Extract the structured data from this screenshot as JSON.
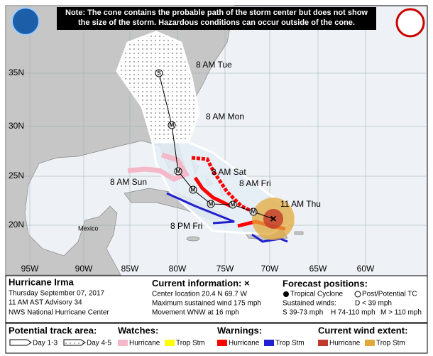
{
  "note": "Note: The cone contains the probable path of the storm center but does not show the size of the storm. Hazardous conditions can occur outside of the cone.",
  "latitude_labels": [
    "35N",
    "30N",
    "25N",
    "20N"
  ],
  "longitude_labels": [
    "95W",
    "90W",
    "85W",
    "80W",
    "75W",
    "70W",
    "65W",
    "60W"
  ],
  "forecast_labels": [
    "8 AM Tue",
    "8 AM Mon",
    "8 AM Sat",
    "8 AM Sun",
    "8 AM Fri",
    "11 AM Thu",
    "8 PM Fri"
  ],
  "forecast_points": [
    "S",
    "M",
    "M",
    "M",
    "M",
    "M",
    "M"
  ],
  "current_position": "×",
  "places": [
    "Mexico"
  ],
  "storm": {
    "name": "Hurricane Irma",
    "date": "Thursday September 07, 2017",
    "advisory": "11 AM AST Advisory 34",
    "center": "NWS National Hurricane Center"
  },
  "current": {
    "title": "Current information:",
    "symbol": "×",
    "lines": [
      "Center location 20.4 N 69.7 W",
      "Maximum sustained wind 175 mph",
      "Movement WNW at 16 mph"
    ]
  },
  "forecast": {
    "title": "Forecast positions:",
    "tropical": "Tropical Cyclone",
    "post": "Post/Potential TC",
    "winds_label": "Sustained winds:",
    "d": "D < 39 mph",
    "s": "S 39-73 mph",
    "h": "H 74-110 mph",
    "m": "M > 110 mph"
  },
  "legend": {
    "track_title": "Potential track area:",
    "day13": "Day 1-3",
    "day45": "Day 4-5",
    "watches_title": "Watches:",
    "watch_hurricane": "Hurricane",
    "watch_trop": "Trop Stm",
    "warnings_title": "Warnings:",
    "warn_hurricane": "Hurricane",
    "warn_trop": "Trop Stm",
    "wind_title": "Current wind extent:",
    "wind_hurricane": "Hurricane",
    "wind_trop": "Trop Stm"
  }
}
